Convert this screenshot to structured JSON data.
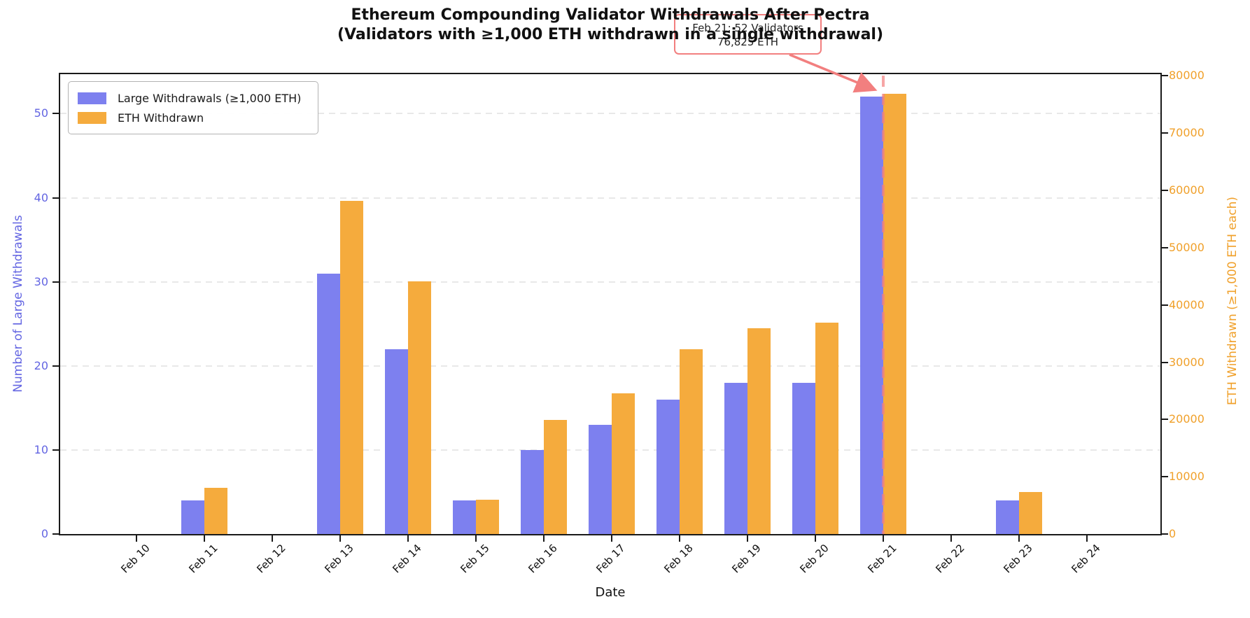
{
  "title": {
    "line1": "Ethereum Compounding Validator Withdrawals After Pectra",
    "line2": "(Validators with ≥1,000 ETH withdrawn in a single withdrawal)"
  },
  "annotation": {
    "line1": "Feb 21: 52 Validators",
    "line2": "76,825 ETH"
  },
  "legend": [
    {
      "label": "Large Withdrawals (≥1,000 ETH)",
      "color": "#7d80ef"
    },
    {
      "label": "ETH Withdrawn",
      "color": "#f5ab3d"
    }
  ],
  "colors": {
    "bar_left": "#7d80ef",
    "bar_right": "#f5ab3d",
    "axis_left_text": "#6365e2",
    "axis_right_text": "#f0a02a",
    "highlight": "#f27f7f",
    "grid": "#e8e8e8",
    "spine": "#1a1a1a"
  },
  "chart_data": {
    "type": "bar",
    "title": "Ethereum Compounding Validator Withdrawals After Pectra (Validators with ≥1,000 ETH withdrawn in a single withdrawal)",
    "categories": [
      "Feb 10",
      "Feb 11",
      "Feb 12",
      "Feb 13",
      "Feb 14",
      "Feb 15",
      "Feb 16",
      "Feb 17",
      "Feb 18",
      "Feb 19",
      "Feb 20",
      "Feb 21",
      "Feb 22",
      "Feb 23",
      "Feb 24"
    ],
    "series": [
      {
        "name": "Large Withdrawals (≥1,000 ETH)",
        "axis": "left",
        "color": "#7d80ef",
        "values": [
          0,
          4,
          0,
          31,
          22,
          4,
          10,
          13,
          16,
          18,
          18,
          52,
          0,
          4,
          0
        ]
      },
      {
        "name": "ETH Withdrawn",
        "axis": "right",
        "color": "#f5ab3d",
        "values": [
          0,
          8050,
          0,
          58200,
          44100,
          6000,
          19900,
          24600,
          32300,
          35900,
          36900,
          76825,
          0,
          7350,
          0
        ]
      }
    ],
    "xlabel": "Date",
    "ylabel_left": "Number of Large Withdrawals",
    "ylabel_right": "ETH Withdrawn (≥1,000 ETH each)",
    "ylim_left": [
      0,
      54.7
    ],
    "ylim_right": [
      0,
      80300
    ],
    "yticks_left": [
      0,
      10,
      20,
      30,
      40,
      50
    ],
    "yticks_right": [
      0,
      10000,
      20000,
      30000,
      40000,
      50000,
      60000,
      70000,
      80000
    ],
    "grid": "horizontal-dashed",
    "legend_position": "upper-left",
    "highlight": {
      "category": "Feb 21",
      "vline_color": "#f27f7f"
    }
  }
}
